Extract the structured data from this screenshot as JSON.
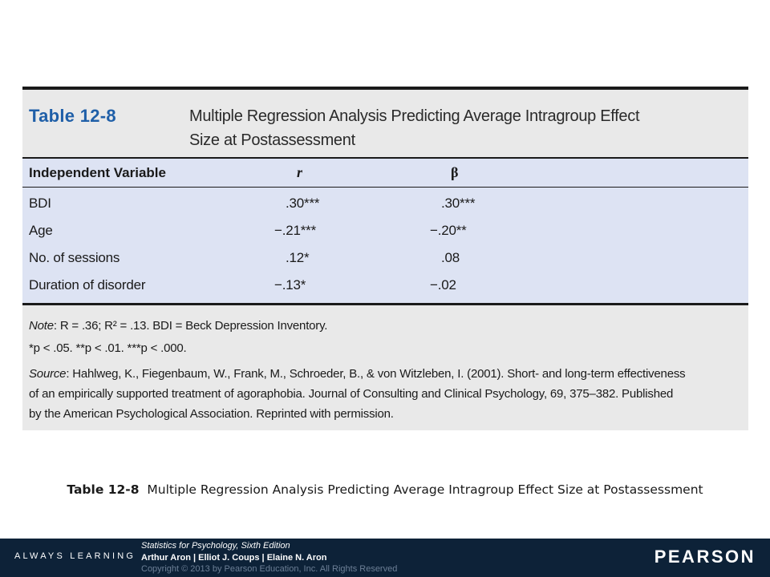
{
  "table": {
    "label": "Table 12-8",
    "title": "Multiple Regression Analysis Predicting Average Intragroup Effect Size at Postassessment",
    "headers": {
      "variable": "Independent Variable",
      "r": "r",
      "beta": "β"
    },
    "rows": [
      {
        "variable": "BDI",
        "r": ".30***",
        "beta": ".30***"
      },
      {
        "variable": "Age",
        "r": "−.21***",
        "beta": "−.20**"
      },
      {
        "variable": "No. of sessions",
        "r": ".12*",
        "beta": ".08"
      },
      {
        "variable": "Duration of disorder",
        "r": "−.13*",
        "beta": "−.02"
      }
    ],
    "note": {
      "note_label": "Note",
      "note_text": "R = .36; R² = .13. BDI = Beck Depression Inventory.",
      "significance": "*p < .05. **p < .01. ***p < .000.",
      "source_label": "Source",
      "source_line1": "Hahlweg, K., Fiegenbaum, W., Frank, M., Schroeder, B., & von Witzleben, I. (2001). Short- and long-term effectiveness",
      "source_line2": "of an empirically supported treatment of agoraphobia. Journal of Consulting and Clinical Psychology, 69, 375–382. Published",
      "source_line3": "by the American Psychological Association. Reprinted with permission."
    }
  },
  "caption": {
    "label": "Table 12-8",
    "text": "Multiple Regression Analysis Predicting Average Intragroup Effect Size at Postassessment"
  },
  "footer": {
    "tagline": "ALWAYS LEARNING",
    "book_title": "Statistics for Psychology, Sixth Edition",
    "authors": "Arthur Aron | Elliot J. Coups | Elaine N. Aron",
    "copyright": "Copyright © 2013 by Pearson Education, Inc. All Rights Reserved",
    "brand": "PEARSON"
  },
  "colors": {
    "table_label": "#1f5fa8",
    "body_bg": "#dde3f3",
    "panel_bg": "#e9e9e9",
    "footer_bg": "#0d2238"
  }
}
